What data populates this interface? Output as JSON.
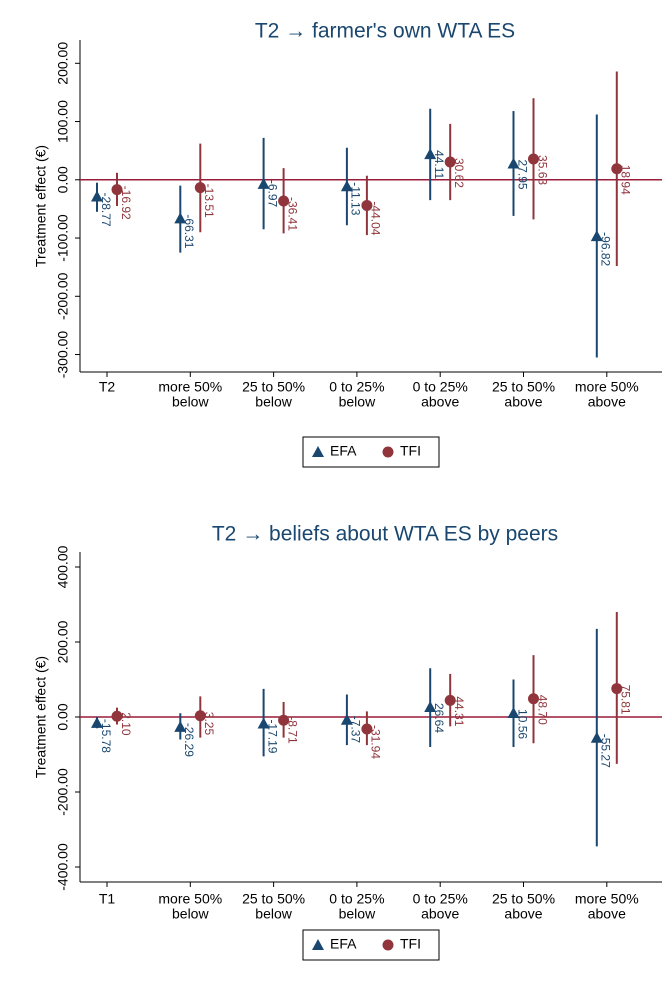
{
  "chart_data": [
    {
      "type": "errorbar",
      "title": "T2 → farmer's own WTA ES",
      "y_label": "Treatment effect (€)",
      "categories": [
        [
          "T2"
        ],
        [
          "more 50%",
          "below"
        ],
        [
          "25 to 50%",
          "below"
        ],
        [
          "0 to 25%",
          "below"
        ],
        [
          "0 to 25%",
          "above"
        ],
        [
          "25 to 50%",
          "above"
        ],
        [
          "more 50%",
          "above"
        ]
      ],
      "ylim": [
        -330,
        240
      ],
      "yticks": [
        {
          "value": -300,
          "label": "-300.00"
        },
        {
          "value": -200,
          "label": "-200.00"
        },
        {
          "value": -100,
          "label": "-100.00"
        },
        {
          "value": 0,
          "label": "0.00"
        },
        {
          "value": 100,
          "label": "100.00"
        },
        {
          "value": 200,
          "label": "200.00"
        }
      ],
      "reference_line": 0,
      "reference_color": "#9b1c3a",
      "series": [
        {
          "name": "EFA",
          "color": "#1a476f",
          "marker": "triangle",
          "values": [
            -28.77,
            -66.31,
            -6.97,
            -11.13,
            44.11,
            27.95,
            -96.82
          ],
          "value_labels": [
            "-28.77",
            "-66.31",
            "-6.97",
            "-11.13",
            "44.11",
            "27.95",
            "-96.82"
          ],
          "ci": [
            [
              -55,
              -5
            ],
            [
              -125,
              -10
            ],
            [
              -85,
              72
            ],
            [
              -78,
              55
            ],
            [
              -35,
              122
            ],
            [
              -62,
              118
            ],
            [
              -305,
              112
            ]
          ]
        },
        {
          "name": "TFI",
          "color": "#90353b",
          "marker": "circle",
          "values": [
            -16.92,
            -13.51,
            -36.41,
            -44.04,
            30.62,
            35.63,
            18.94
          ],
          "value_labels": [
            "-16.92",
            "-13.51",
            "-36.41",
            "-44.04",
            "30.62",
            "35.63",
            "18.94"
          ],
          "ci": [
            [
              -45,
              12
            ],
            [
              -90,
              62
            ],
            [
              -92,
              20
            ],
            [
              -95,
              7
            ],
            [
              -35,
              96
            ],
            [
              -68,
              140
            ],
            [
              -148,
              186
            ]
          ]
        }
      ]
    },
    {
      "type": "errorbar",
      "title": "T2 → beliefs about WTA ES by  peers",
      "y_label": "Treatment effect (€)",
      "categories": [
        [
          "T1"
        ],
        [
          "more 50%",
          "below"
        ],
        [
          "25 to 50%",
          "below"
        ],
        [
          "0 to 25%",
          "below"
        ],
        [
          "0 to 25%",
          "above"
        ],
        [
          "25 to 50%",
          "above"
        ],
        [
          "more 50%",
          "above"
        ]
      ],
      "ylim": [
        -440,
        440
      ],
      "yticks": [
        {
          "value": -400,
          "label": "-400.00"
        },
        {
          "value": -200,
          "label": "-200.00"
        },
        {
          "value": 0,
          "label": "0.00"
        },
        {
          "value": 200,
          "label": "200.00"
        },
        {
          "value": 400,
          "label": "400.00"
        }
      ],
      "reference_line": 0,
      "reference_color": "#9b1c3a",
      "series": [
        {
          "name": "EFA",
          "color": "#1a476f",
          "marker": "triangle",
          "values": [
            -15.78,
            -26.29,
            -17.19,
            -7.37,
            26.64,
            10.56,
            -55.27
          ],
          "value_labels": [
            "-15.78",
            "-26.29",
            "-17.19",
            "-7.37",
            "26.64",
            "10.56",
            "-55.27"
          ],
          "ci": [
            [
              -30,
              0
            ],
            [
              -60,
              10
            ],
            [
              -105,
              75
            ],
            [
              -75,
              60
            ],
            [
              -80,
              130
            ],
            [
              -80,
              100
            ],
            [
              -345,
              235
            ]
          ]
        },
        {
          "name": "TFI",
          "color": "#90353b",
          "marker": "circle",
          "values": [
            2.1,
            3.25,
            -8.71,
            -31.94,
            44.31,
            48.7,
            75.81
          ],
          "value_labels": [
            "2.10",
            "3.25",
            "-8.71",
            "-31.94",
            "44.31",
            "48.70",
            "75.81"
          ],
          "ci": [
            [
              -20,
              25
            ],
            [
              -55,
              55
            ],
            [
              -55,
              40
            ],
            [
              -75,
              15
            ],
            [
              -25,
              115
            ],
            [
              -70,
              165
            ],
            [
              -125,
              280
            ]
          ]
        }
      ]
    }
  ]
}
